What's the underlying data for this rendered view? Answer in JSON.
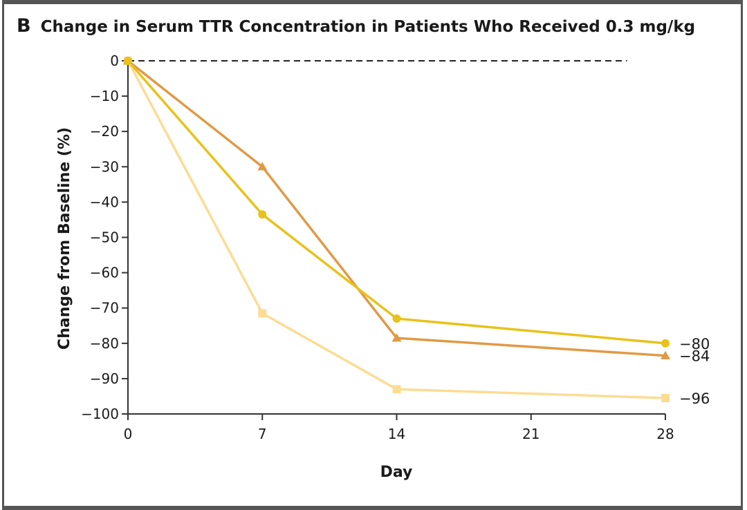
{
  "panel": {
    "letter": "B",
    "title": "Change in Serum TTR Concentration in Patients Who Received 0.3 mg/kg"
  },
  "chart_data": {
    "type": "line",
    "xlabel": "Day",
    "ylabel": "Change from Baseline (%)",
    "xlim": [
      0,
      28
    ],
    "ylim": [
      -100,
      0
    ],
    "xticks": [
      0,
      7,
      14,
      21,
      28
    ],
    "xtick_labels": [
      "0",
      "7",
      "14",
      "21",
      "28"
    ],
    "yticks": [
      0,
      -10,
      -20,
      -30,
      -40,
      -50,
      -60,
      -70,
      -80,
      -90,
      -100
    ],
    "ytick_labels": [
      "0",
      "−10",
      "−20",
      "−30",
      "−40",
      "−50",
      "−60",
      "−70",
      "−80",
      "−90",
      "−100"
    ],
    "reference_line": {
      "y": 0,
      "x_end": 26,
      "style": "dashed"
    },
    "grid": false,
    "series": [
      {
        "marker": "triangle",
        "color": "#e09a45",
        "x": [
          0,
          7,
          14,
          28
        ],
        "y": [
          0,
          -30,
          -78.5,
          -83.5
        ],
        "end_label": "−84"
      },
      {
        "marker": "circle",
        "color": "#e8c21a",
        "x": [
          0,
          7,
          14,
          28
        ],
        "y": [
          0,
          -43.5,
          -73,
          -80
        ],
        "end_label": "−80"
      },
      {
        "marker": "square",
        "color": "#fcdc94",
        "x": [
          0,
          7,
          14,
          28
        ],
        "y": [
          0,
          -71.5,
          -93,
          -95.5
        ],
        "end_label": "−96"
      }
    ]
  }
}
